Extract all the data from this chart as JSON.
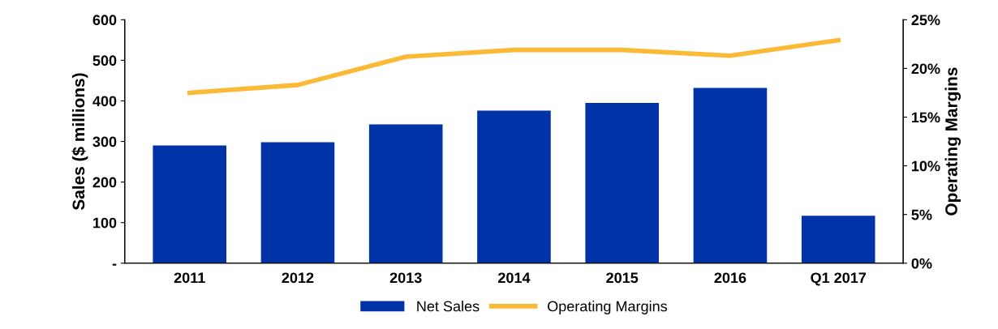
{
  "chart_data": {
    "type": "bar",
    "categories": [
      "2011",
      "2012",
      "2013",
      "2014",
      "2015",
      "2016",
      "Q1 2017"
    ],
    "ylabel": "Sales ($ millions)",
    "y2label": "Operating Margins",
    "series": [
      {
        "name": "Net Sales",
        "color": "#0033a8",
        "values": [
          290,
          298,
          342,
          376,
          395,
          432,
          117
        ]
      },
      {
        "name": "Operating Margins",
        "type": "line",
        "axis": "y2",
        "color": "#fbb936",
        "values": [
          17.5,
          18.3,
          21.2,
          21.9,
          21.9,
          21.3,
          22.9
        ]
      }
    ],
    "ylim": [
      0,
      600
    ],
    "yticks": [
      {
        "value": 0,
        "label": "-"
      },
      100,
      200,
      300,
      400,
      500,
      600
    ],
    "y2lim": [
      0,
      25
    ],
    "y2ticks": [
      {
        "value": 0,
        "label": "0%"
      },
      {
        "value": 5,
        "label": "5%"
      },
      {
        "value": 10,
        "label": "10%"
      },
      {
        "value": 15,
        "label": "15%"
      },
      {
        "value": 20,
        "label": "20%"
      },
      {
        "value": 25,
        "label": "25%"
      }
    ],
    "legend": "bottom",
    "grid": false,
    "marker": "none",
    "line_style": "solid"
  }
}
